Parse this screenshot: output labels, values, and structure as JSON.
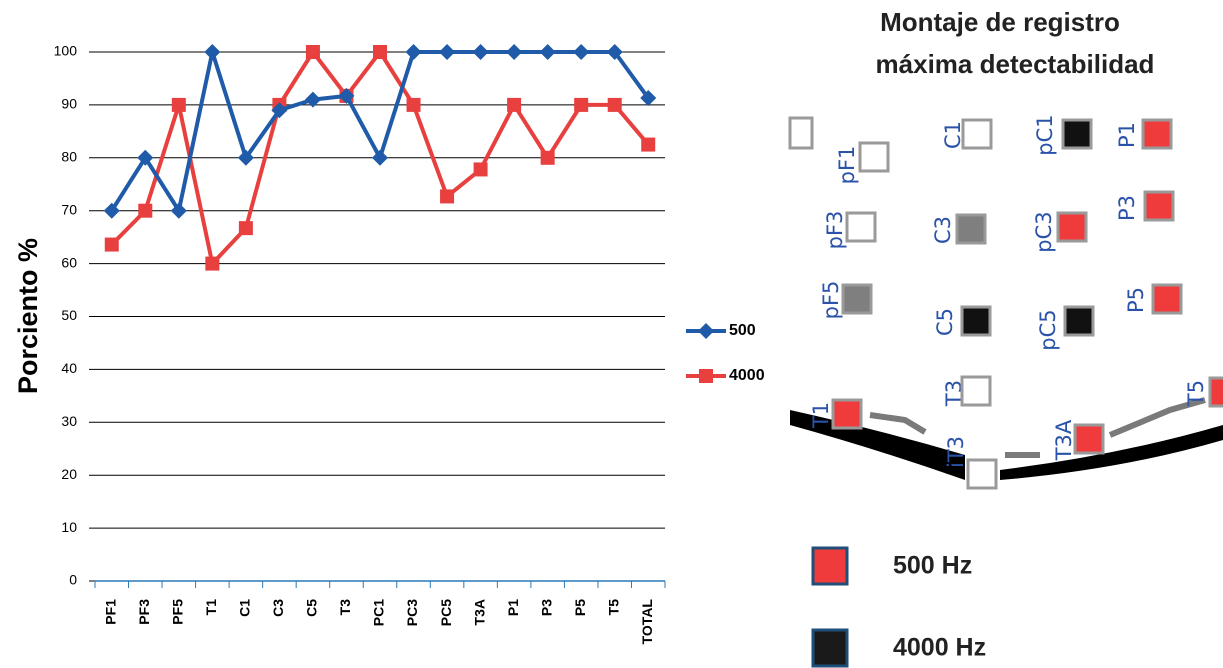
{
  "chart_data": {
    "type": "line",
    "y_label": "Porciento %",
    "categories": [
      "PF1",
      "PF3",
      "PF5",
      "T1",
      "C1",
      "C3",
      "C5",
      "T3",
      "PC1",
      "PC3",
      "PC5",
      "T3A",
      "P1",
      "P3",
      "P5",
      "T5",
      "TOTAL"
    ],
    "series": [
      {
        "name": "500",
        "color": "#1f5ba8",
        "marker": "diamond",
        "values": [
          70,
          80,
          70,
          100,
          80,
          89,
          91,
          91.7,
          80,
          100,
          100,
          100,
          100,
          100,
          100,
          100,
          91.3
        ]
      },
      {
        "name": "4000",
        "color": "#e8403f",
        "marker": "square",
        "values": [
          63.6,
          70,
          90,
          60,
          66.7,
          90,
          100,
          91.7,
          100,
          90,
          72.7,
          77.8,
          90,
          80,
          90,
          90,
          82.5
        ]
      }
    ],
    "ylim": [
      0,
      100
    ],
    "yticks": [
      0,
      10,
      20,
      30,
      40,
      50,
      60,
      70,
      80,
      90,
      100
    ],
    "grid": true
  },
  "diagram": {
    "title": [
      "Montaje de registro",
      "máxima detectabilidad"
    ],
    "electrodes": [
      {
        "label": "pF1",
        "color": "#ffffff"
      },
      {
        "label": "C1",
        "color": "#ffffff"
      },
      {
        "label": "pC1",
        "color": "#111111"
      },
      {
        "label": "P1",
        "color": "#ef3b3b"
      },
      {
        "label": "pF3",
        "color": "#ffffff"
      },
      {
        "label": "C3",
        "color": "#7f7f7f"
      },
      {
        "label": "pC3",
        "color": "#ef3b3b"
      },
      {
        "label": "P3",
        "color": "#ef3b3b"
      },
      {
        "label": "pF5",
        "color": "#7f7f7f"
      },
      {
        "label": "C5",
        "color": "#111111"
      },
      {
        "label": "pC5",
        "color": "#111111"
      },
      {
        "label": "P5",
        "color": "#ef3b3b"
      },
      {
        "label": "T1",
        "color": "#ef3b3b"
      },
      {
        "label": "T3",
        "color": "#ffffff"
      },
      {
        "label": "iT3",
        "color": "#ffffff"
      },
      {
        "label": "T3A",
        "color": "#ef3b3b"
      },
      {
        "label": "T5",
        "color": "#ef3b3b"
      }
    ],
    "legend": [
      {
        "label": "500 Hz",
        "color": "#ef3b3b"
      },
      {
        "label": "4000 Hz",
        "color": "#1a1a1a"
      }
    ]
  }
}
